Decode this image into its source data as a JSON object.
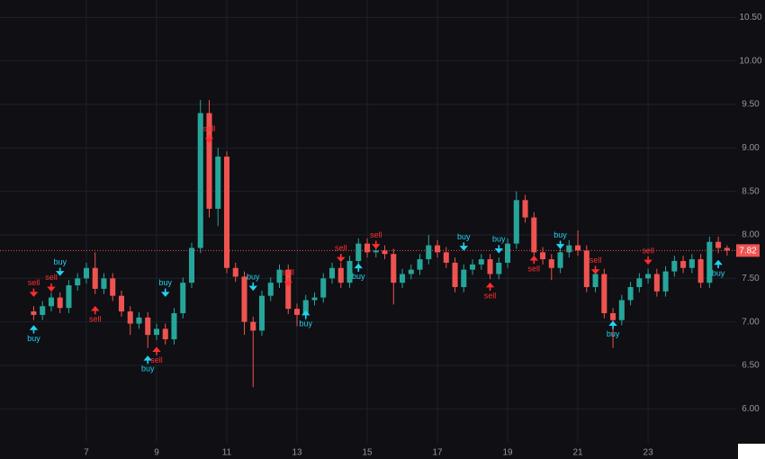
{
  "chart_data": {
    "type": "candlestick",
    "up_color": "#26a69a",
    "down_color": "#ef5350",
    "buy_color": "#22d3ee",
    "sell_color": "#ff2e2e",
    "grid": true,
    "xlim": [
      4.54,
      25.51
    ],
    "ylim": [
      5.61,
      10.7
    ],
    "xticks": [
      7,
      9,
      11,
      13,
      15,
      17,
      19,
      21,
      23
    ],
    "yticks": [
      {
        "value": 6,
        "label": "6.00"
      },
      {
        "value": 6.5,
        "label": "6.50"
      },
      {
        "value": 7,
        "label": "7.00"
      },
      {
        "value": 7.5,
        "label": "7.50"
      },
      {
        "value": 8,
        "label": "8.00"
      },
      {
        "value": 8.5,
        "label": "8.50"
      },
      {
        "value": 9,
        "label": "9.00"
      },
      {
        "value": 9.5,
        "label": "9.50"
      },
      {
        "value": 10,
        "label": "10.00"
      },
      {
        "value": 10.5,
        "label": "10.50"
      }
    ],
    "x": [
      5.5,
      5.75,
      6,
      6.25,
      6.5,
      6.75,
      7,
      7.25,
      7.5,
      7.75,
      8,
      8.25,
      8.5,
      8.75,
      9,
      9.25,
      9.5,
      9.75,
      10,
      10.25,
      10.5,
      10.75,
      11,
      11.25,
      11.5,
      11.75,
      12,
      12.25,
      12.5,
      12.75,
      13,
      13.25,
      13.5,
      13.75,
      14,
      14.25,
      14.5,
      14.75,
      15,
      15.25,
      15.5,
      15.75,
      16,
      16.25,
      16.5,
      16.75,
      17,
      17.25,
      17.5,
      17.75,
      18,
      18.25,
      18.5,
      18.75,
      19,
      19.25,
      19.5,
      19.75,
      20,
      20.25,
      20.5,
      20.75,
      21,
      21.25,
      21.5,
      21.75,
      22,
      22.25,
      22.5,
      22.75,
      23,
      23.25,
      23.5,
      23.75,
      24,
      24.25,
      24.5,
      24.75,
      25,
      25.25
    ],
    "open": [
      7.12,
      7.08,
      7.18,
      7.28,
      7.16,
      7.42,
      7.5,
      7.62,
      7.38,
      7.5,
      7.3,
      7.12,
      6.98,
      7.05,
      6.85,
      6.92,
      6.8,
      7.1,
      7.45,
      7.85,
      9.4,
      8.3,
      8.9,
      7.62,
      7.52,
      7,
      6.9,
      7.3,
      7.45,
      7.6,
      7.15,
      7.08,
      7.25,
      7.28,
      7.5,
      7.62,
      7.45,
      7.7,
      7.9,
      7.8,
      7.82,
      7.78,
      7.45,
      7.55,
      7.6,
      7.72,
      7.88,
      7.8,
      7.68,
      7.4,
      7.6,
      7.66,
      7.72,
      7.55,
      7.68,
      7.9,
      8.4,
      8.2,
      7.8,
      7.72,
      7.62,
      7.8,
      7.88,
      7.82,
      7.4,
      7.55,
      7.1,
      7.02,
      7.25,
      7.4,
      7.5,
      7.55,
      7.35,
      7.58,
      7.7,
      7.62,
      7.72,
      7.45,
      7.92,
      7.85
    ],
    "high": [
      7.18,
      7.24,
      7.34,
      7.34,
      7.48,
      7.56,
      7.68,
      7.8,
      7.56,
      7.56,
      7.36,
      7.18,
      7.11,
      7.11,
      6.98,
      6.98,
      7.16,
      7.51,
      7.91,
      9.55,
      9.55,
      9,
      8.96,
      7.68,
      7.58,
      7.06,
      7.36,
      7.51,
      7.66,
      7.66,
      7.21,
      7.31,
      7.34,
      7.56,
      7.68,
      7.68,
      7.76,
      7.96,
      7.96,
      7.88,
      7.88,
      7.84,
      7.61,
      7.66,
      7.78,
      8,
      7.94,
      7.86,
      7.74,
      7.66,
      7.72,
      7.78,
      7.78,
      7.74,
      7.96,
      8.5,
      8.46,
      8.26,
      7.86,
      7.78,
      7.86,
      7.94,
      8.05,
      7.88,
      7.61,
      7.61,
      7.16,
      7.31,
      7.46,
      7.56,
      7.61,
      7.61,
      7.64,
      7.76,
      7.76,
      7.78,
      7.78,
      7.98,
      7.98,
      7.88
    ],
    "low": [
      7.02,
      7.02,
      7.12,
      7.1,
      7.1,
      7.36,
      7.44,
      7.32,
      7.32,
      7.24,
      7.06,
      6.85,
      6.92,
      6.7,
      6.79,
      6.74,
      6.74,
      7.04,
      7.39,
      7.79,
      8.2,
      8.1,
      7.56,
      7.46,
      6.85,
      6.25,
      6.84,
      7.24,
      7.39,
      7.09,
      6.95,
      7.02,
      7.19,
      7.22,
      7.44,
      7.39,
      7.39,
      7.64,
      7.74,
      7.74,
      7.72,
      7.2,
      7.39,
      7.49,
      7.54,
      7.66,
      7.74,
      7.62,
      7.34,
      7.34,
      7.54,
      7.6,
      7.49,
      7.49,
      7.62,
      7.84,
      8.14,
      7.74,
      7.66,
      7.48,
      7.56,
      7.74,
      7.76,
      7.34,
      7.34,
      7.04,
      6.7,
      6.96,
      7.19,
      7.34,
      7.44,
      7.29,
      7.29,
      7.52,
      7.56,
      7.56,
      7.39,
      7.39,
      7.79,
      7.76
    ],
    "close": [
      7.08,
      7.18,
      7.28,
      7.16,
      7.42,
      7.5,
      7.62,
      7.38,
      7.5,
      7.3,
      7.12,
      6.98,
      7.05,
      6.85,
      6.92,
      6.8,
      7.1,
      7.45,
      7.85,
      9.4,
      8.3,
      8.9,
      7.62,
      7.52,
      7,
      6.9,
      7.3,
      7.45,
      7.6,
      7.15,
      7.08,
      7.25,
      7.28,
      7.5,
      7.62,
      7.45,
      7.7,
      7.9,
      7.8,
      7.82,
      7.78,
      7.45,
      7.55,
      7.6,
      7.72,
      7.88,
      7.8,
      7.68,
      7.4,
      7.6,
      7.66,
      7.72,
      7.55,
      7.68,
      7.9,
      8.4,
      8.2,
      7.8,
      7.72,
      7.62,
      7.8,
      7.88,
      7.82,
      7.4,
      7.55,
      7.1,
      7.02,
      7.25,
      7.4,
      7.5,
      7.55,
      7.35,
      7.58,
      7.7,
      7.62,
      7.72,
      7.45,
      7.92,
      7.85,
      7.82
    ],
    "last_price": 7.82,
    "signals": [
      {
        "label": "buy",
        "x": 5.5,
        "y": 6.95,
        "side": "below"
      },
      {
        "label": "sell",
        "x": 5.5,
        "y": 7.3,
        "side": "above"
      },
      {
        "label": "sell",
        "x": 6,
        "y": 7.36,
        "side": "above"
      },
      {
        "label": "buy",
        "x": 6.25,
        "y": 7.54,
        "side": "above"
      },
      {
        "label": "sell",
        "x": 7.25,
        "y": 7.17,
        "side": "below"
      },
      {
        "label": "buy",
        "x": 8.75,
        "y": 6.6,
        "side": "below"
      },
      {
        "label": "sell",
        "x": 9,
        "y": 6.7,
        "side": "below"
      },
      {
        "label": "buy",
        "x": 9.25,
        "y": 7.3,
        "side": "above"
      },
      {
        "label": "sell",
        "x": 10.5,
        "y": 9.07,
        "side": "above"
      },
      {
        "label": "buy",
        "x": 11.75,
        "y": 7.37,
        "side": "above"
      },
      {
        "label": "sell",
        "x": 12.75,
        "y": 7.42,
        "side": "above"
      },
      {
        "label": "buy",
        "x": 13.25,
        "y": 7.12,
        "side": "below"
      },
      {
        "label": "sell",
        "x": 14.25,
        "y": 7.7,
        "side": "above"
      },
      {
        "label": "buy",
        "x": 14.75,
        "y": 7.66,
        "side": "below"
      },
      {
        "label": "sell",
        "x": 15.25,
        "y": 7.85,
        "side": "above"
      },
      {
        "label": "buy",
        "x": 17.75,
        "y": 7.83,
        "side": "above"
      },
      {
        "label": "sell",
        "x": 18.5,
        "y": 7.44,
        "side": "below"
      },
      {
        "label": "buy",
        "x": 18.75,
        "y": 7.8,
        "side": "above"
      },
      {
        "label": "sell",
        "x": 19.75,
        "y": 7.75,
        "side": "below"
      },
      {
        "label": "buy",
        "x": 20.5,
        "y": 7.85,
        "side": "above"
      },
      {
        "label": "sell",
        "x": 21.5,
        "y": 7.56,
        "side": "above"
      },
      {
        "label": "buy",
        "x": 22,
        "y": 7,
        "side": "below"
      },
      {
        "label": "sell",
        "x": 23,
        "y": 7.67,
        "side": "above"
      },
      {
        "label": "buy",
        "x": 25,
        "y": 7.7,
        "side": "below"
      }
    ]
  }
}
